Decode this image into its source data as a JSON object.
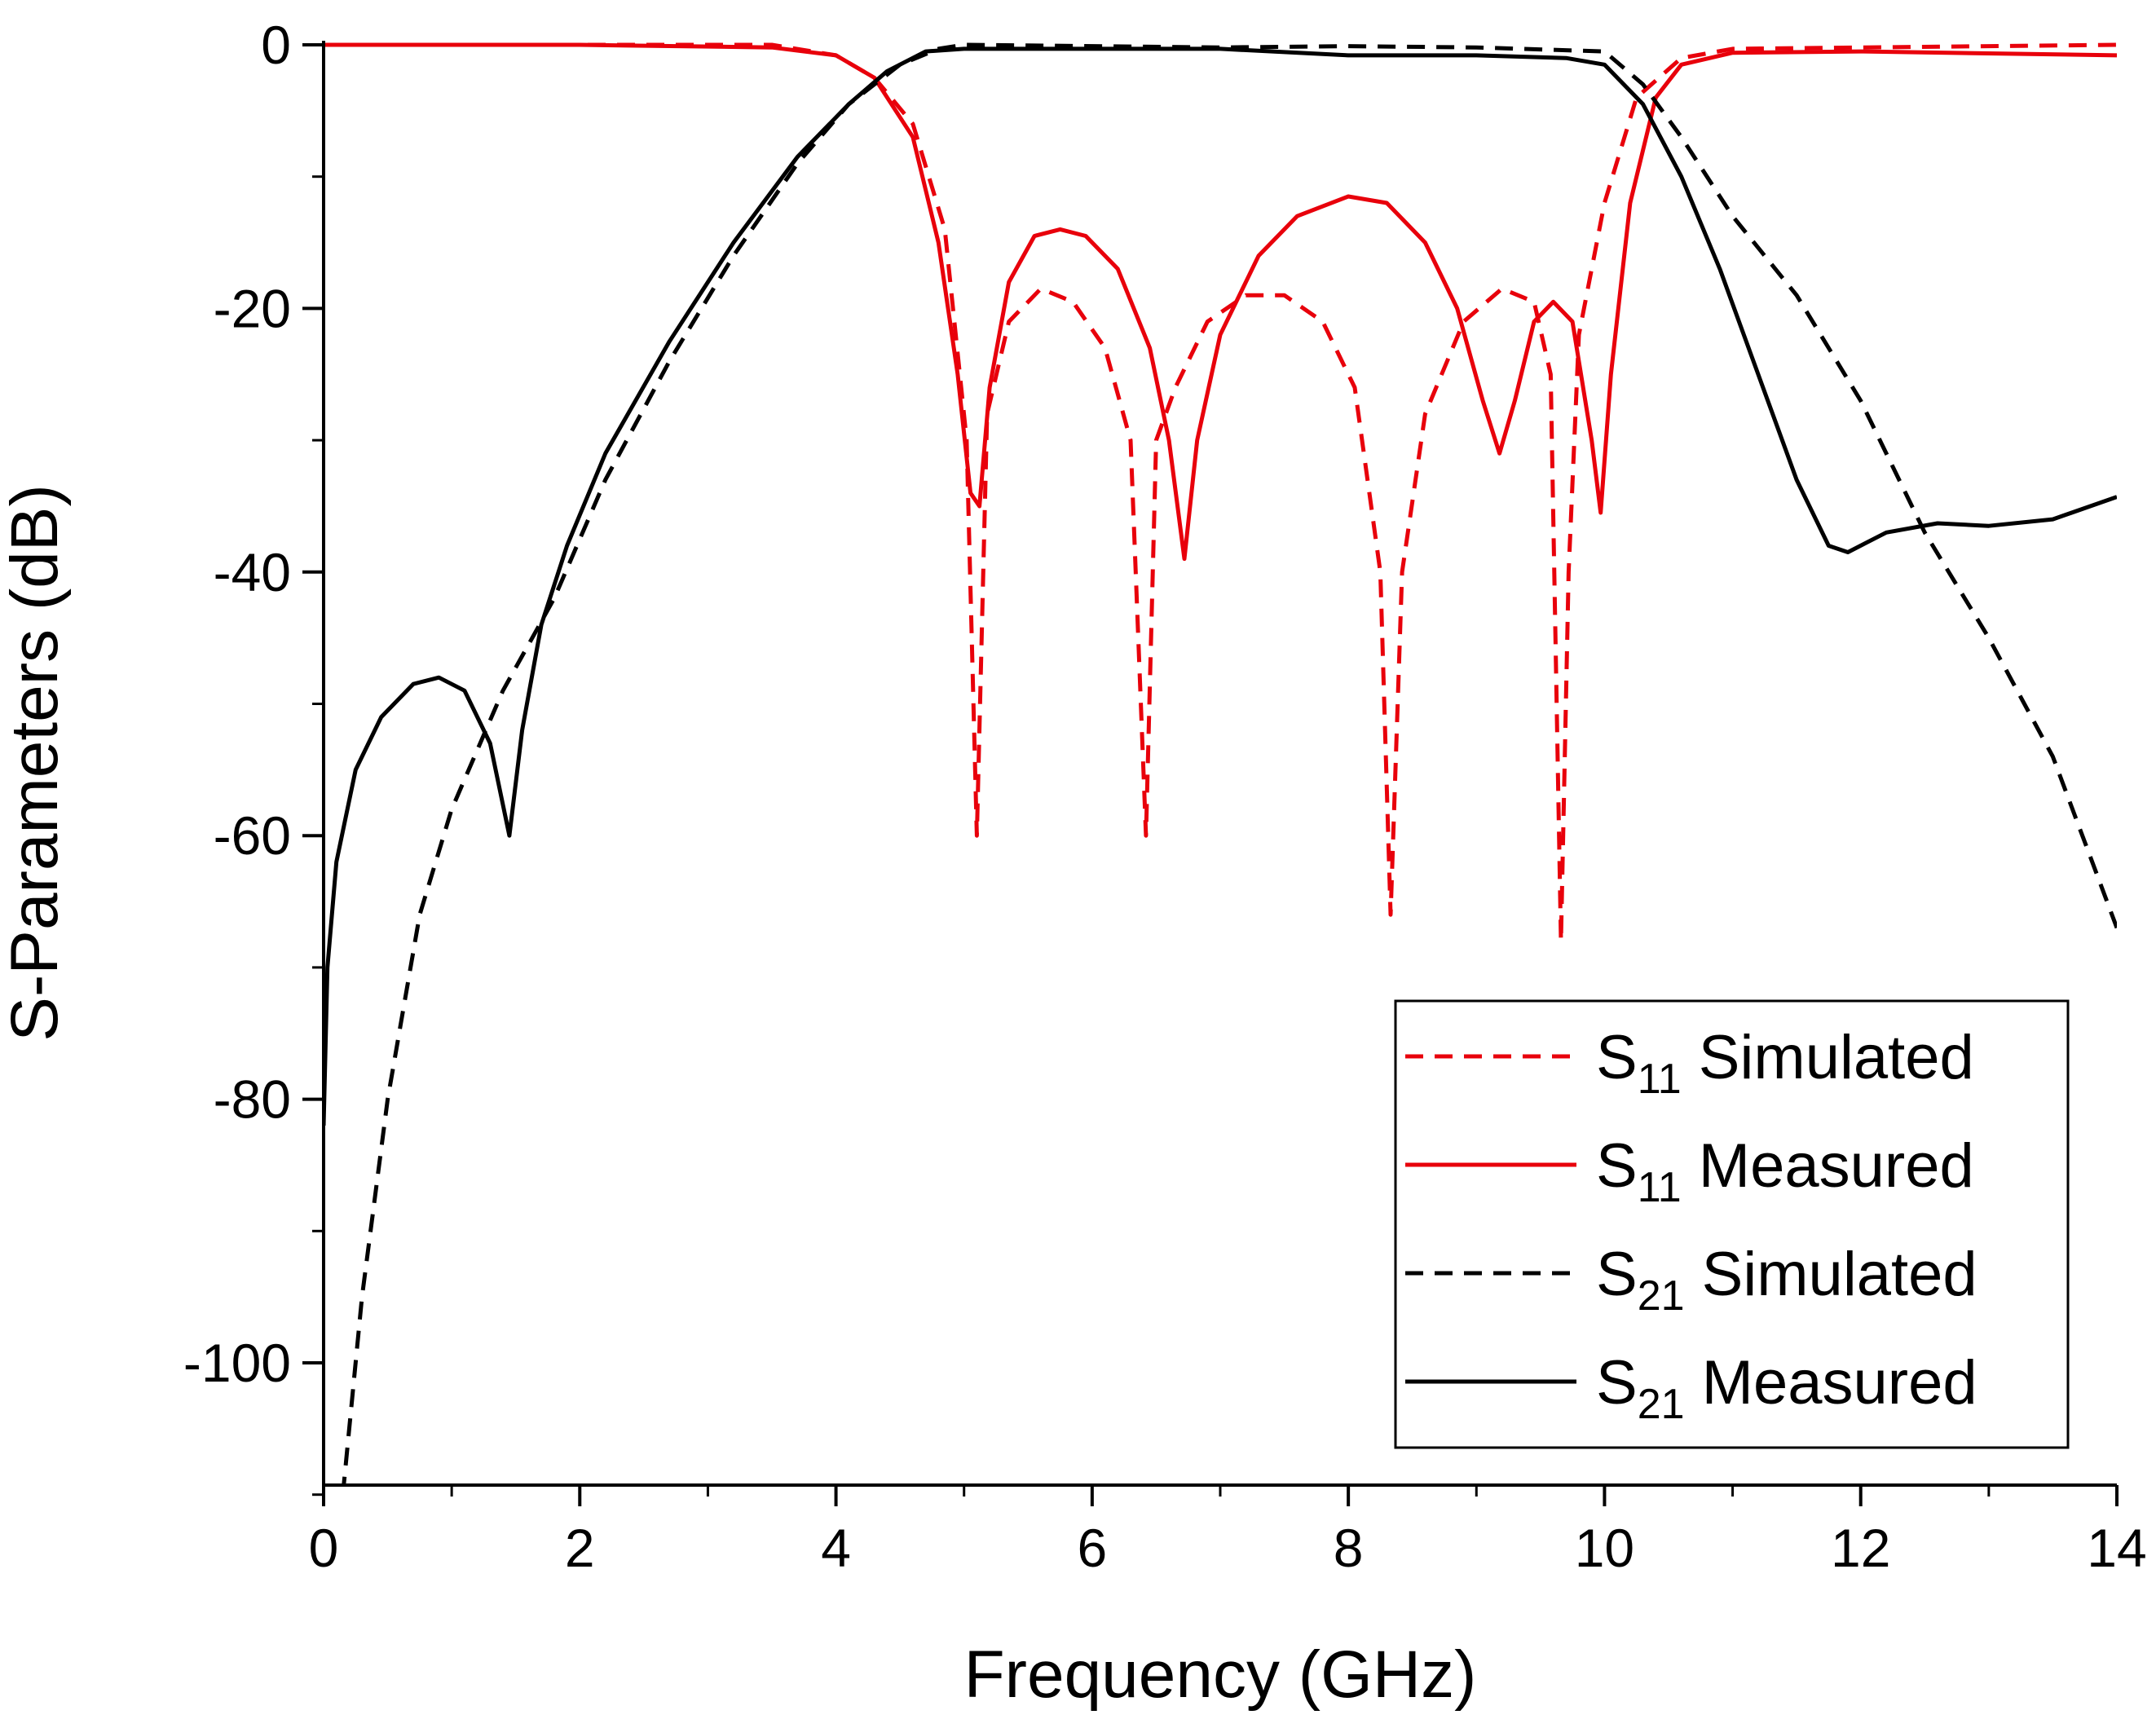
{
  "chart_data": {
    "type": "line",
    "title": "",
    "xlabel": "Frequency (GHz)",
    "ylabel": "S-Parameters (dB)",
    "xlim": [
      0,
      14
    ],
    "ylim": [
      -110,
      0
    ],
    "xticks": [
      0,
      2,
      4,
      6,
      8,
      10,
      12,
      14
    ],
    "xtick_labels": [
      "0",
      "2",
      "4",
      "6",
      "8",
      "10",
      "12",
      "14"
    ],
    "yticks": [
      0,
      -20,
      -40,
      -60,
      -80,
      -100
    ],
    "ytick_labels": [
      "0",
      "-20",
      "-40",
      "-60",
      "-80",
      "-100"
    ],
    "grid": false,
    "legend_position": "bottom-right",
    "series": [
      {
        "name": "S11 Simulated",
        "label_main": "S",
        "label_sub": "11",
        "label_rest": " Simulated",
        "color": "#e8000b",
        "dash": "dashed",
        "points": [
          [
            0,
            0
          ],
          [
            2,
            0
          ],
          [
            3.5,
            0
          ],
          [
            4.0,
            -0.8
          ],
          [
            4.3,
            -2.5
          ],
          [
            4.6,
            -6
          ],
          [
            4.85,
            -14
          ],
          [
            5.02,
            -30
          ],
          [
            5.1,
            -60
          ],
          [
            5.18,
            -28
          ],
          [
            5.35,
            -21
          ],
          [
            5.6,
            -18.5
          ],
          [
            5.85,
            -19.5
          ],
          [
            6.1,
            -23
          ],
          [
            6.3,
            -30
          ],
          [
            6.42,
            -60
          ],
          [
            6.5,
            -30
          ],
          [
            6.65,
            -26
          ],
          [
            6.9,
            -21
          ],
          [
            7.2,
            -19
          ],
          [
            7.5,
            -19
          ],
          [
            7.8,
            -21
          ],
          [
            8.05,
            -26
          ],
          [
            8.25,
            -40
          ],
          [
            8.33,
            -66
          ],
          [
            8.42,
            -40
          ],
          [
            8.6,
            -28
          ],
          [
            8.9,
            -21
          ],
          [
            9.2,
            -18.5
          ],
          [
            9.45,
            -19.5
          ],
          [
            9.58,
            -25
          ],
          [
            9.66,
            -68
          ],
          [
            9.72,
            -40
          ],
          [
            9.8,
            -22
          ],
          [
            10.0,
            -12
          ],
          [
            10.25,
            -4
          ],
          [
            10.6,
            -1
          ],
          [
            11.0,
            -0.3
          ],
          [
            14,
            0
          ]
        ]
      },
      {
        "name": "S11 Measured",
        "label_main": "S",
        "label_sub": "11",
        "label_rest": " Measured",
        "color": "#e8000b",
        "dash": "solid",
        "points": [
          [
            0,
            0
          ],
          [
            2,
            0
          ],
          [
            3.5,
            -0.2
          ],
          [
            4.0,
            -0.8
          ],
          [
            4.3,
            -2.5
          ],
          [
            4.6,
            -7
          ],
          [
            4.8,
            -15
          ],
          [
            4.95,
            -25
          ],
          [
            5.05,
            -34
          ],
          [
            5.12,
            -35
          ],
          [
            5.2,
            -26
          ],
          [
            5.35,
            -18
          ],
          [
            5.55,
            -14.5
          ],
          [
            5.75,
            -14
          ],
          [
            5.95,
            -14.5
          ],
          [
            6.2,
            -17
          ],
          [
            6.45,
            -23
          ],
          [
            6.6,
            -30
          ],
          [
            6.72,
            -39
          ],
          [
            6.82,
            -30
          ],
          [
            7.0,
            -22
          ],
          [
            7.3,
            -16
          ],
          [
            7.6,
            -13
          ],
          [
            8.0,
            -11.5
          ],
          [
            8.3,
            -12
          ],
          [
            8.6,
            -15
          ],
          [
            8.85,
            -20
          ],
          [
            9.05,
            -27
          ],
          [
            9.18,
            -31
          ],
          [
            9.3,
            -27
          ],
          [
            9.45,
            -21
          ],
          [
            9.6,
            -19.5
          ],
          [
            9.75,
            -21
          ],
          [
            9.9,
            -30
          ],
          [
            9.97,
            -35.5
          ],
          [
            10.05,
            -25
          ],
          [
            10.2,
            -12
          ],
          [
            10.4,
            -4
          ],
          [
            10.6,
            -1.5
          ],
          [
            11.0,
            -0.6
          ],
          [
            12,
            -0.5
          ],
          [
            14,
            -0.8
          ]
        ]
      },
      {
        "name": "S21 Simulated",
        "label_main": "S",
        "label_sub": "21",
        "label_rest": " Simulated",
        "color": "#000000",
        "dash": "dashed",
        "points": [
          [
            0.15,
            -110
          ],
          [
            0.3,
            -95
          ],
          [
            0.5,
            -80
          ],
          [
            0.75,
            -66
          ],
          [
            1.0,
            -58
          ],
          [
            1.4,
            -49
          ],
          [
            1.8,
            -42
          ],
          [
            2.2,
            -33
          ],
          [
            2.7,
            -24
          ],
          [
            3.2,
            -16
          ],
          [
            3.7,
            -9
          ],
          [
            4.1,
            -4.5
          ],
          [
            4.5,
            -1.5
          ],
          [
            4.8,
            -0.3
          ],
          [
            5,
            0
          ],
          [
            7,
            -0.2
          ],
          [
            8,
            -0.1
          ],
          [
            9,
            -0.2
          ],
          [
            10,
            -0.5
          ],
          [
            10.3,
            -3
          ],
          [
            10.6,
            -7
          ],
          [
            11,
            -13
          ],
          [
            11.5,
            -19
          ],
          [
            12,
            -27
          ],
          [
            12.5,
            -37
          ],
          [
            13,
            -45
          ],
          [
            13.5,
            -54
          ],
          [
            14,
            -67
          ]
        ]
      },
      {
        "name": "S21 Measured",
        "label_main": "S",
        "label_sub": "21",
        "label_rest": " Measured",
        "color": "#000000",
        "dash": "solid",
        "points": [
          [
            0,
            -82
          ],
          [
            0.03,
            -70
          ],
          [
            0.1,
            -62
          ],
          [
            0.25,
            -55
          ],
          [
            0.45,
            -51
          ],
          [
            0.7,
            -48.5
          ],
          [
            0.9,
            -48
          ],
          [
            1.1,
            -49
          ],
          [
            1.3,
            -53
          ],
          [
            1.45,
            -60
          ],
          [
            1.55,
            -52
          ],
          [
            1.7,
            -44
          ],
          [
            1.9,
            -38
          ],
          [
            2.2,
            -31
          ],
          [
            2.7,
            -22.5
          ],
          [
            3.2,
            -15
          ],
          [
            3.7,
            -8.5
          ],
          [
            4.1,
            -4.5
          ],
          [
            4.4,
            -2
          ],
          [
            4.7,
            -0.5
          ],
          [
            5,
            -0.3
          ],
          [
            7,
            -0.3
          ],
          [
            8,
            -0.8
          ],
          [
            9,
            -0.8
          ],
          [
            9.7,
            -1
          ],
          [
            10,
            -1.5
          ],
          [
            10.3,
            -4.5
          ],
          [
            10.6,
            -10
          ],
          [
            10.9,
            -17
          ],
          [
            11.2,
            -25
          ],
          [
            11.5,
            -33
          ],
          [
            11.75,
            -38
          ],
          [
            11.9,
            -38.5
          ],
          [
            12.2,
            -37
          ],
          [
            12.6,
            -36.3
          ],
          [
            13,
            -36.5
          ],
          [
            13.5,
            -36
          ],
          [
            14,
            -34.3
          ]
        ]
      }
    ]
  }
}
